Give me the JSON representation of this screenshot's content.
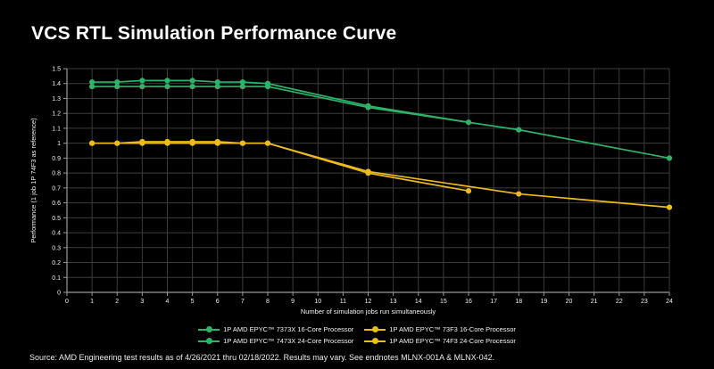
{
  "title": "VCS RTL Simulation Performance Curve",
  "footer": "Source: AMD Engineering test results as of 4/26/2021 thru 02/18/2022. Results may vary. See endnotes MLNX-001A & MLNX-042.",
  "colors": {
    "background": "#000000",
    "title_text": "#ffffff",
    "grid": "#3c3c3c",
    "axis_line": "#9a9a9a",
    "tick_text": "#f2f2f2",
    "series_green": "#2db469",
    "series_yellow": "#edbb1c"
  },
  "chart_data": {
    "type": "line",
    "title": "VCS RTL Simulation Performance Curve",
    "xlabel": "Number of simulation jobs run simultaneously",
    "ylabel": "Performance (1 job 1P 74F3 as reference)",
    "xlim": [
      0,
      24
    ],
    "ylim": [
      0,
      1.5
    ],
    "x_ticks": [
      0,
      1,
      2,
      3,
      4,
      5,
      6,
      7,
      8,
      9,
      10,
      11,
      12,
      13,
      14,
      15,
      16,
      17,
      18,
      19,
      20,
      21,
      22,
      23,
      24
    ],
    "y_ticks": [
      0,
      0.1,
      0.2,
      0.3,
      0.4,
      0.5,
      0.6,
      0.7,
      0.8,
      0.9,
      1,
      1.1,
      1.2,
      1.3,
      1.4,
      1.5
    ],
    "grid": true,
    "legend_position": "bottom",
    "series": [
      {
        "name": "1P AMD EPYC™ 7373X 16-Core Processor",
        "color": "#2db469",
        "points": [
          [
            1,
            1.41
          ],
          [
            2,
            1.41
          ],
          [
            3,
            1.42
          ],
          [
            4,
            1.42
          ],
          [
            5,
            1.42
          ],
          [
            6,
            1.41
          ],
          [
            7,
            1.41
          ],
          [
            8,
            1.4
          ],
          [
            12,
            1.25
          ],
          [
            16,
            1.14
          ]
        ]
      },
      {
        "name": "1P AMD EPYC™ 7473X 24-Core Processor",
        "color": "#2db469",
        "points": [
          [
            1,
            1.38
          ],
          [
            2,
            1.38
          ],
          [
            3,
            1.38
          ],
          [
            4,
            1.38
          ],
          [
            5,
            1.38
          ],
          [
            6,
            1.38
          ],
          [
            7,
            1.38
          ],
          [
            8,
            1.38
          ],
          [
            12,
            1.24
          ],
          [
            18,
            1.09
          ],
          [
            24,
            0.9
          ]
        ]
      },
      {
        "name": "1P AMD EPYC™ 73F3 16-Core Processor",
        "color": "#edbb1c",
        "points": [
          [
            1,
            1.0
          ],
          [
            2,
            1.0
          ],
          [
            3,
            1.01
          ],
          [
            4,
            1.01
          ],
          [
            5,
            1.01
          ],
          [
            6,
            1.01
          ],
          [
            7,
            1.0
          ],
          [
            8,
            1.0
          ],
          [
            12,
            0.8
          ],
          [
            16,
            0.68
          ]
        ]
      },
      {
        "name": "1P AMD EPYC™ 74F3 24-Core Processor",
        "color": "#edbb1c",
        "points": [
          [
            1,
            1.0
          ],
          [
            2,
            1.0
          ],
          [
            3,
            1.0
          ],
          [
            4,
            1.0
          ],
          [
            5,
            1.0
          ],
          [
            6,
            1.0
          ],
          [
            7,
            1.0
          ],
          [
            8,
            1.0
          ],
          [
            12,
            0.81
          ],
          [
            18,
            0.66
          ],
          [
            24,
            0.57
          ]
        ]
      }
    ]
  }
}
